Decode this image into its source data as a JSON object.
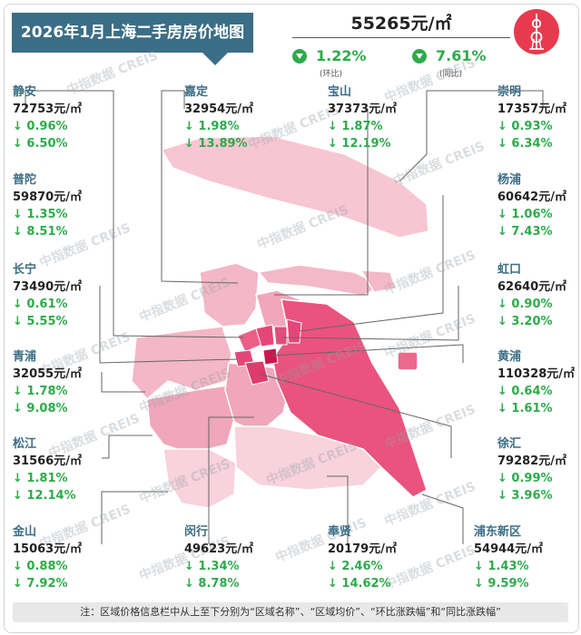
{
  "title": "2026年1月上海二手房房价地图",
  "city": {
    "price": "55265元/㎡",
    "mom": "1.22%",
    "mom_label": "(环比)",
    "yoy": "7.61%",
    "yoy_label": "(同比)"
  },
  "districts": [
    {
      "name": "静安",
      "price": "72753元/㎡",
      "mom": "↓ 0.96%",
      "yoy": "↓ 6.50%"
    },
    {
      "name": "嘉定",
      "price": "32954元/㎡",
      "mom": "↓ 1.98%",
      "yoy": "↓ 13.89%"
    },
    {
      "name": "宝山",
      "price": "37373元/㎡",
      "mom": "↓ 1.87%",
      "yoy": "↓ 12.19%"
    },
    {
      "name": "崇明",
      "price": "17357元/㎡",
      "mom": "↓ 0.93%",
      "yoy": "↓ 6.34%"
    },
    {
      "name": "普陀",
      "price": "59870元/㎡",
      "mom": "↓ 1.35%",
      "yoy": "↓ 8.51%"
    },
    {
      "name": "杨浦",
      "price": "60642元/㎡",
      "mom": "↓ 1.06%",
      "yoy": "↓ 7.43%"
    },
    {
      "name": "长宁",
      "price": "73490元/㎡",
      "mom": "↓ 0.61%",
      "yoy": "↓ 5.55%"
    },
    {
      "name": "虹口",
      "price": "62640元/㎡",
      "mom": "↓ 0.90%",
      "yoy": "↓ 3.20%"
    },
    {
      "name": "青浦",
      "price": "32055元/㎡",
      "mom": "↓ 1.78%",
      "yoy": "↓ 9.08%"
    },
    {
      "name": "黄浦",
      "price": "110328元/㎡",
      "mom": "↓ 0.64%",
      "yoy": "↓ 1.61%"
    },
    {
      "name": "松江",
      "price": "31566元/㎡",
      "mom": "↓ 1.81%",
      "yoy": "↓ 12.14%"
    },
    {
      "name": "徐汇",
      "price": "79282元/㎡",
      "mom": "↓ 0.99%",
      "yoy": "↓ 3.96%"
    },
    {
      "name": "金山",
      "price": "15063元/㎡",
      "mom": "↓ 0.88%",
      "yoy": "↓ 7.92%"
    },
    {
      "name": "闵行",
      "price": "49623元/㎡",
      "mom": "↓ 1.34%",
      "yoy": "↓ 8.78%"
    },
    {
      "name": "奉贤",
      "price": "20179元/㎡",
      "mom": "↓ 2.46%",
      "yoy": "↓ 14.62%"
    },
    {
      "name": "浦东新区",
      "price": "54944元/㎡",
      "mom": "↓ 1.43%",
      "yoy": "↓ 9.59%"
    }
  ],
  "footer": "注：区域价格信息栏中从上至下分别为“区域名称”、“区域均价”、“环比涨跌幅”和“同比涨跌幅”",
  "watermark": "中指数据 CREIS",
  "colors": {
    "banner": "#3b6e86",
    "down": "#2faa4c",
    "accent": "#e83a4e"
  }
}
